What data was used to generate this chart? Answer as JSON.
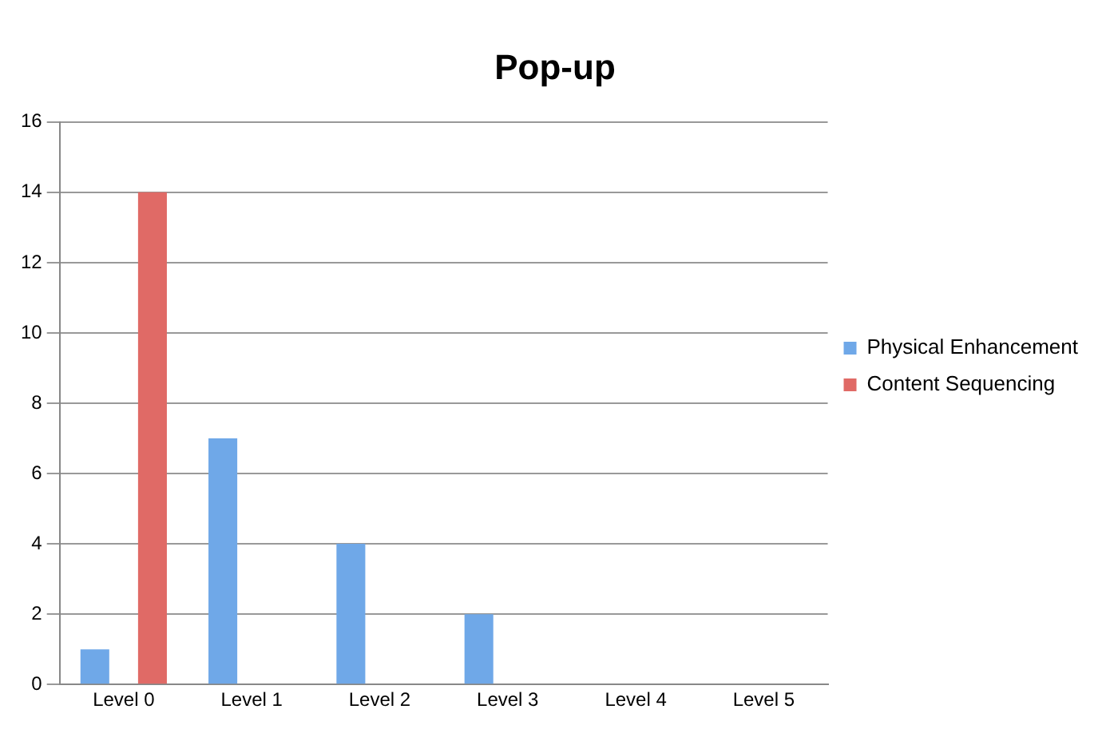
{
  "chart_data": {
    "type": "bar",
    "title": "Pop-up",
    "categories": [
      "Level 0",
      "Level 1",
      "Level 2",
      "Level 3",
      "Level 4",
      "Level 5"
    ],
    "series": [
      {
        "name": "Physical Enhancement",
        "color": "#6fa8e8",
        "values": [
          1,
          7,
          4,
          2,
          0,
          0
        ]
      },
      {
        "name": "Content Sequencing",
        "color": "#e06a66",
        "values": [
          14,
          0,
          0,
          0,
          0,
          0
        ]
      }
    ],
    "ylim": [
      0,
      16
    ],
    "yticks": [
      0,
      2,
      4,
      6,
      8,
      10,
      12,
      14,
      16
    ],
    "grid": "y",
    "legend": "right"
  }
}
